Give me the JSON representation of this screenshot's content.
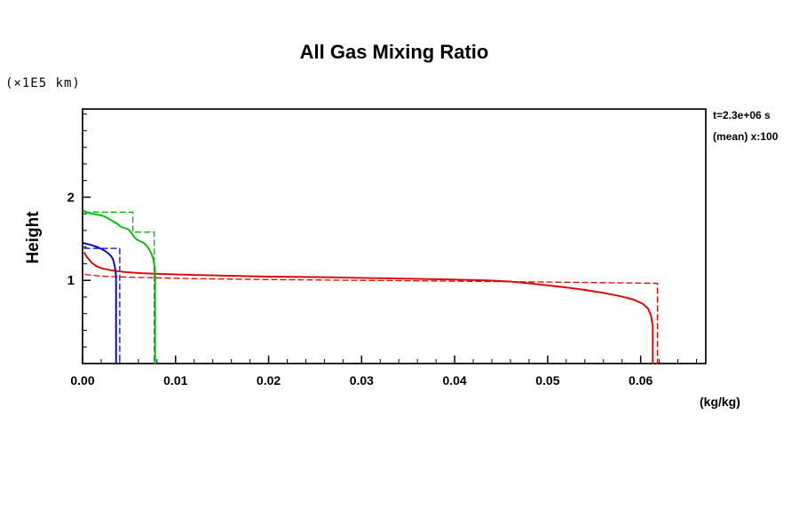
{
  "title": "All Gas Mixing Ratio",
  "y_axis_unit": "(×1E5 km)",
  "y_axis_label": "Height",
  "x_axis_unit": "(kg/kg)",
  "annotations": {
    "line1": "t=2.3e+06 s",
    "line2": "(mean) x:100"
  },
  "colors": {
    "red": "#e00000",
    "green": "#00bb00",
    "blue": "#0000cc",
    "axis": "#000000"
  },
  "chart_data": {
    "type": "line",
    "title": "All Gas Mixing Ratio",
    "xlabel": "(kg/kg)",
    "ylabel": "Height (×1E5 km)",
    "xlim": [
      0,
      0.067
    ],
    "ylim": [
      0,
      3.06
    ],
    "grid": false,
    "legend": "none",
    "x_ticks": [
      0,
      0.01,
      0.02,
      0.03,
      0.04,
      0.05,
      0.06
    ],
    "x_tick_labels": [
      "0.00",
      "0.01",
      "0.02",
      "0.03",
      "0.04",
      "0.05",
      "0.06"
    ],
    "y_ticks": [
      1,
      2
    ],
    "y_tick_labels": [
      "1",
      "2"
    ],
    "x_minor_step": 0.002,
    "y_minor_step": 0.2,
    "series": [
      {
        "name": "red-initial-profile",
        "color": "#e00000",
        "style": "dashed",
        "points": [
          [
            0.0003,
            1.07
          ],
          [
            0.002,
            1.05
          ],
          [
            0.006,
            1.035
          ],
          [
            0.012,
            1.02
          ],
          [
            0.02,
            1.01
          ],
          [
            0.03,
            1.0
          ],
          [
            0.04,
            0.99
          ],
          [
            0.05,
            0.98
          ],
          [
            0.058,
            0.97
          ],
          [
            0.0618,
            0.965
          ],
          [
            0.0618,
            0.0
          ]
        ]
      },
      {
        "name": "green-initial-profile",
        "color": "#00bb00",
        "style": "dashed",
        "points": [
          [
            0.0002,
            1.82
          ],
          [
            0.0054,
            1.82
          ],
          [
            0.0054,
            1.58
          ],
          [
            0.0077,
            1.58
          ],
          [
            0.0077,
            0.0
          ]
        ]
      },
      {
        "name": "blue-initial-profile",
        "color": "#0000cc",
        "style": "dashed",
        "points": [
          [
            0.0002,
            1.385
          ],
          [
            0.004,
            1.385
          ],
          [
            0.004,
            0.0
          ]
        ]
      },
      {
        "name": "red-mean-profile",
        "color": "#e00000",
        "style": "solid",
        "points": [
          [
            0.0002,
            1.33
          ],
          [
            0.0004,
            1.29
          ],
          [
            0.0007,
            1.25
          ],
          [
            0.001,
            1.21
          ],
          [
            0.0015,
            1.17
          ],
          [
            0.0022,
            1.14
          ],
          [
            0.0032,
            1.12
          ],
          [
            0.0045,
            1.1
          ],
          [
            0.0065,
            1.085
          ],
          [
            0.009,
            1.075
          ],
          [
            0.012,
            1.065
          ],
          [
            0.016,
            1.055
          ],
          [
            0.02,
            1.045
          ],
          [
            0.025,
            1.04
          ],
          [
            0.03,
            1.03
          ],
          [
            0.035,
            1.02
          ],
          [
            0.04,
            1.01
          ],
          [
            0.0435,
            1.0
          ],
          [
            0.046,
            0.985
          ],
          [
            0.048,
            0.965
          ],
          [
            0.05,
            0.94
          ],
          [
            0.052,
            0.915
          ],
          [
            0.054,
            0.885
          ],
          [
            0.056,
            0.85
          ],
          [
            0.0578,
            0.81
          ],
          [
            0.0592,
            0.77
          ],
          [
            0.0602,
            0.72
          ],
          [
            0.0608,
            0.66
          ],
          [
            0.0611,
            0.58
          ],
          [
            0.0613,
            0.45
          ],
          [
            0.0613,
            0.0
          ]
        ]
      },
      {
        "name": "green-mean-profile",
        "color": "#00bb00",
        "style": "solid",
        "points": [
          [
            0.0001,
            1.84
          ],
          [
            0.0004,
            1.82
          ],
          [
            0.0008,
            1.805
          ],
          [
            0.0013,
            1.795
          ],
          [
            0.0018,
            1.785
          ],
          [
            0.0022,
            1.775
          ],
          [
            0.0026,
            1.755
          ],
          [
            0.0029,
            1.735
          ],
          [
            0.0032,
            1.715
          ],
          [
            0.0035,
            1.695
          ],
          [
            0.0038,
            1.675
          ],
          [
            0.004,
            1.655
          ],
          [
            0.0042,
            1.64
          ],
          [
            0.0045,
            1.63
          ],
          [
            0.0048,
            1.62
          ],
          [
            0.005,
            1.605
          ],
          [
            0.0052,
            1.575
          ],
          [
            0.0054,
            1.545
          ],
          [
            0.0056,
            1.515
          ],
          [
            0.0058,
            1.495
          ],
          [
            0.0061,
            1.475
          ],
          [
            0.0064,
            1.46
          ],
          [
            0.0066,
            1.445
          ],
          [
            0.0068,
            1.425
          ],
          [
            0.007,
            1.4
          ],
          [
            0.0072,
            1.365
          ],
          [
            0.0074,
            1.32
          ],
          [
            0.0076,
            1.26
          ],
          [
            0.0077,
            1.19
          ],
          [
            0.0078,
            1.1
          ],
          [
            0.0078,
            0.0
          ]
        ]
      },
      {
        "name": "blue-mean-profile",
        "color": "#0000cc",
        "style": "solid",
        "points": [
          [
            0.0001,
            1.45
          ],
          [
            0.0004,
            1.44
          ],
          [
            0.0008,
            1.43
          ],
          [
            0.0012,
            1.415
          ],
          [
            0.0016,
            1.4
          ],
          [
            0.002,
            1.38
          ],
          [
            0.0024,
            1.355
          ],
          [
            0.0027,
            1.33
          ],
          [
            0.003,
            1.3
          ],
          [
            0.0032,
            1.27
          ],
          [
            0.0033,
            1.24
          ],
          [
            0.0034,
            1.2
          ],
          [
            0.0035,
            1.14
          ],
          [
            0.0036,
            1.05
          ],
          [
            0.0036,
            0.0
          ]
        ]
      }
    ]
  }
}
